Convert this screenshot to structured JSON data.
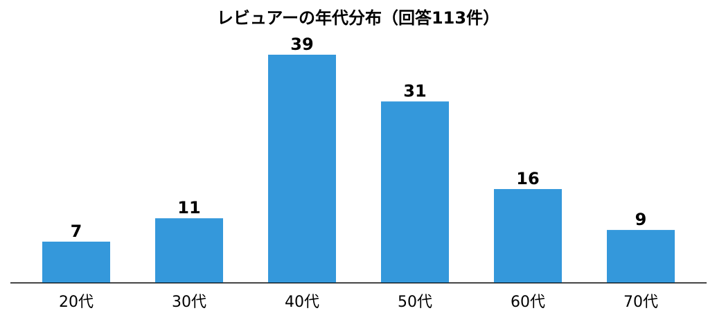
{
  "chart_data": {
    "type": "bar",
    "title": "レビュアーの年代分布（回答113件）",
    "categories": [
      "20代",
      "30代",
      "40代",
      "50代",
      "60代",
      "70代"
    ],
    "values": [
      7,
      11,
      39,
      31,
      16,
      9
    ],
    "color": "#3498db"
  }
}
